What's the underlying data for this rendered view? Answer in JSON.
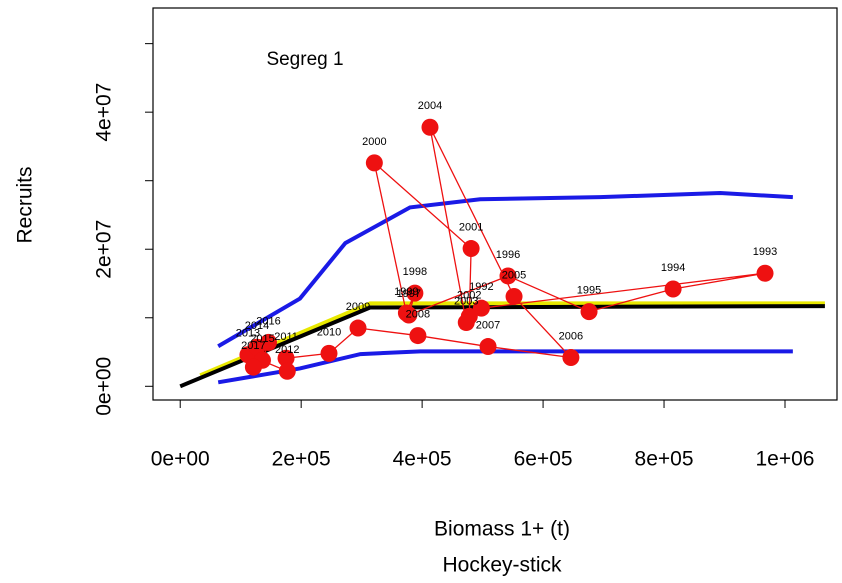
{
  "chart_data": {
    "type": "scatter",
    "annotation": "Segreg 1",
    "xlabel": "Biomass 1+ (t)",
    "subtitle": "Hockey-stick",
    "ylabel": "Recruits",
    "xlim": [
      -45000,
      1086000
    ],
    "ylim": [
      -2000000,
      55200000
    ],
    "xticks": [
      {
        "value": 0,
        "label": "0e+00"
      },
      {
        "value": 200000,
        "label": "2e+05"
      },
      {
        "value": 400000,
        "label": "4e+05"
      },
      {
        "value": 600000,
        "label": "6e+05"
      },
      {
        "value": 800000,
        "label": "8e+05"
      },
      {
        "value": 1000000,
        "label": "1e+06"
      }
    ],
    "yticks": [
      {
        "value": 0,
        "label": "0e+00"
      },
      {
        "value": 20000000,
        "label": "2e+07"
      },
      {
        "value": 40000000,
        "label": "4e+07"
      }
    ],
    "yminorticks": [
      10000000,
      30000000,
      50000000
    ],
    "series": [
      {
        "color": "#1a1ae6",
        "x": [
          62800,
          198000,
          273000,
          380000,
          496000,
          694000,
          893000,
          1013000
        ],
        "values": [
          5840000,
          12800000,
          20900000,
          26100000,
          27300000,
          27600000,
          28200000,
          27600000
        ]
      },
      {
        "color": "#1a1ae6",
        "x": [
          62800,
          198000,
          298000,
          397000,
          1013000
        ],
        "values": [
          580000,
          2600000,
          4700000,
          5100000,
          5100000
        ]
      },
      {
        "color": "#e8e800",
        "x": [
          33000,
          314000,
          1066000
        ],
        "values": [
          1600000,
          12100000,
          12100000
        ]
      },
      {
        "color": "#000000",
        "x": [
          0,
          314000,
          1066000
        ],
        "values": [
          0,
          11500000,
          11700000
        ]
      },
      {
        "color": "#ee1111",
        "point": true,
        "labels": [
          "1992",
          "1993",
          "1994",
          "1995",
          "1996",
          "1997",
          "1998",
          "1999",
          "2000",
          "2001",
          "2002",
          "2003",
          "2004",
          "2005",
          "2006",
          "2007",
          "2008",
          "2009",
          "2010",
          "2011",
          "2012",
          "2013",
          "2014",
          "2015",
          "2016",
          "2017"
        ],
        "x": [
          498000,
          967000,
          815000,
          676000,
          542000,
          378000,
          388000,
          374000,
          321000,
          481000,
          478000,
          473000,
          413000,
          552000,
          646000,
          509000,
          393000,
          294000,
          246000,
          175000,
          177000,
          112000,
          127000,
          136000,
          146000,
          121000
        ],
        "values": [
          11400000,
          16500000,
          14200000,
          10900000,
          16100000,
          10400000,
          13600000,
          10700000,
          32600000,
          20100000,
          10200000,
          9300000,
          37800000,
          13100000,
          4200000,
          5800000,
          7400000,
          8500000,
          4800000,
          4100000,
          2200000,
          4600000,
          5700000,
          3800000,
          6400000,
          2800000
        ]
      }
    ]
  }
}
